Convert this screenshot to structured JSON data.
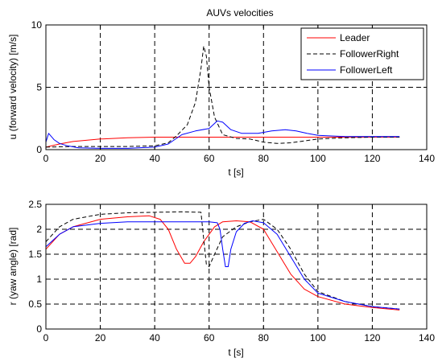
{
  "chart_data": [
    {
      "type": "line",
      "title": "AUVs velocities",
      "xlabel": "t [s]",
      "ylabel": "u (forward velocity) [m/s]",
      "xlim": [
        0,
        140
      ],
      "ylim": [
        0,
        10
      ],
      "xticks": [
        "0",
        "20",
        "40",
        "60",
        "80",
        "100",
        "120",
        "140"
      ],
      "yticks": [
        "0",
        "5",
        "10"
      ],
      "grid": true,
      "legend_placement": "top-right",
      "series": [
        {
          "name": "Leader",
          "color": "#ff0000",
          "dash": "solid",
          "points": [
            [
              0,
              0.2
            ],
            [
              5,
              0.45
            ],
            [
              10,
              0.65
            ],
            [
              20,
              0.85
            ],
            [
              30,
              0.95
            ],
            [
              40,
              1.0
            ],
            [
              50,
              1.0
            ],
            [
              60,
              1.0
            ],
            [
              70,
              1.0
            ],
            [
              80,
              1.0
            ],
            [
              90,
              1.0
            ],
            [
              100,
              1.0
            ],
            [
              110,
              1.0
            ],
            [
              120,
              1.0
            ],
            [
              130,
              1.0
            ]
          ]
        },
        {
          "name": "FollowerRight",
          "color": "#000000",
          "dash": "dashed",
          "points": [
            [
              0,
              0.2
            ],
            [
              10,
              0.25
            ],
            [
              20,
              0.25
            ],
            [
              30,
              0.25
            ],
            [
              40,
              0.3
            ],
            [
              45,
              0.55
            ],
            [
              48,
              1.1
            ],
            [
              52,
              2.0
            ],
            [
              55,
              3.8
            ],
            [
              57,
              6.5
            ],
            [
              58,
              8.3
            ],
            [
              59,
              7.5
            ],
            [
              60,
              5.0
            ],
            [
              62,
              2.6
            ],
            [
              65,
              1.2
            ],
            [
              70,
              0.9
            ],
            [
              75,
              0.85
            ],
            [
              80,
              0.6
            ],
            [
              85,
              0.5
            ],
            [
              90,
              0.55
            ],
            [
              95,
              0.7
            ],
            [
              100,
              0.85
            ],
            [
              110,
              0.95
            ],
            [
              120,
              1.0
            ],
            [
              130,
              1.0
            ]
          ]
        },
        {
          "name": "FollowerLeft",
          "color": "#0000ff",
          "dash": "solid",
          "points": [
            [
              0,
              0.6
            ],
            [
              1,
              1.3
            ],
            [
              3,
              0.8
            ],
            [
              5,
              0.5
            ],
            [
              8,
              0.3
            ],
            [
              12,
              0.15
            ],
            [
              20,
              0.1
            ],
            [
              30,
              0.1
            ],
            [
              40,
              0.2
            ],
            [
              45,
              0.45
            ],
            [
              50,
              1.2
            ],
            [
              55,
              1.5
            ],
            [
              60,
              1.7
            ],
            [
              63,
              2.3
            ],
            [
              65,
              2.2
            ],
            [
              68,
              1.6
            ],
            [
              72,
              1.3
            ],
            [
              78,
              1.3
            ],
            [
              83,
              1.5
            ],
            [
              88,
              1.6
            ],
            [
              92,
              1.5
            ],
            [
              96,
              1.3
            ],
            [
              100,
              1.15
            ],
            [
              110,
              1.05
            ],
            [
              120,
              1.05
            ],
            [
              130,
              1.05
            ]
          ]
        }
      ]
    },
    {
      "type": "line",
      "title": "",
      "xlabel": "t [s]",
      "ylabel": "r (yaw angle) [rad]",
      "xlim": [
        0,
        140
      ],
      "ylim": [
        0,
        2.5
      ],
      "xticks": [
        "0",
        "20",
        "40",
        "60",
        "80",
        "100",
        "120",
        "140"
      ],
      "yticks": [
        "0",
        "0.5",
        "1",
        "1.5",
        "2",
        "2.5"
      ],
      "grid": true,
      "series": [
        {
          "name": "Leader",
          "color": "#ff0000",
          "dash": "solid",
          "points": [
            [
              0,
              1.6
            ],
            [
              5,
              1.9
            ],
            [
              10,
              2.05
            ],
            [
              20,
              2.2
            ],
            [
              30,
              2.25
            ],
            [
              38,
              2.27
            ],
            [
              42,
              2.2
            ],
            [
              45,
              2.0
            ],
            [
              48,
              1.6
            ],
            [
              51,
              1.32
            ],
            [
              53,
              1.32
            ],
            [
              55,
              1.45
            ],
            [
              58,
              1.75
            ],
            [
              62,
              2.05
            ],
            [
              65,
              2.15
            ],
            [
              70,
              2.17
            ],
            [
              75,
              2.15
            ],
            [
              80,
              2.0
            ],
            [
              85,
              1.55
            ],
            [
              90,
              1.1
            ],
            [
              95,
              0.8
            ],
            [
              100,
              0.65
            ],
            [
              110,
              0.5
            ],
            [
              120,
              0.43
            ],
            [
              130,
              0.38
            ]
          ]
        },
        {
          "name": "FollowerRight",
          "color": "#000000",
          "dash": "dashed",
          "points": [
            [
              0,
              1.75
            ],
            [
              5,
              2.05
            ],
            [
              10,
              2.2
            ],
            [
              20,
              2.3
            ],
            [
              30,
              2.33
            ],
            [
              40,
              2.34
            ],
            [
              50,
              2.35
            ],
            [
              57,
              2.34
            ],
            [
              58,
              1.8
            ],
            [
              59,
              1.3
            ],
            [
              60,
              1.25
            ],
            [
              62,
              1.5
            ],
            [
              65,
              1.85
            ],
            [
              70,
              2.05
            ],
            [
              75,
              2.15
            ],
            [
              80,
              2.2
            ],
            [
              85,
              2.0
            ],
            [
              90,
              1.6
            ],
            [
              95,
              1.1
            ],
            [
              100,
              0.75
            ],
            [
              110,
              0.55
            ],
            [
              120,
              0.45
            ],
            [
              130,
              0.4
            ]
          ]
        },
        {
          "name": "FollowerLeft",
          "color": "#0000ff",
          "dash": "solid",
          "points": [
            [
              0,
              1.65
            ],
            [
              5,
              1.9
            ],
            [
              10,
              2.05
            ],
            [
              20,
              2.12
            ],
            [
              30,
              2.15
            ],
            [
              40,
              2.15
            ],
            [
              50,
              2.15
            ],
            [
              60,
              2.15
            ],
            [
              63,
              2.13
            ],
            [
              64,
              2.0
            ],
            [
              65,
              1.6
            ],
            [
              66,
              1.25
            ],
            [
              67,
              1.25
            ],
            [
              68,
              1.6
            ],
            [
              70,
              1.95
            ],
            [
              73,
              2.12
            ],
            [
              76,
              2.17
            ],
            [
              80,
              2.13
            ],
            [
              85,
              1.9
            ],
            [
              90,
              1.45
            ],
            [
              95,
              1.0
            ],
            [
              100,
              0.72
            ],
            [
              110,
              0.55
            ],
            [
              120,
              0.45
            ],
            [
              130,
              0.4
            ]
          ]
        }
      ]
    }
  ]
}
